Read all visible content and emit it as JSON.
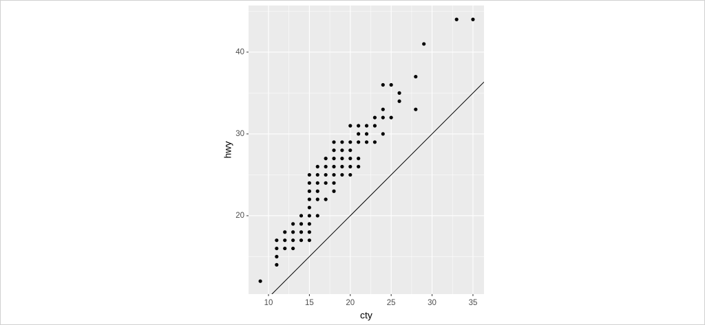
{
  "chart_data": {
    "type": "scatter",
    "x_label": "cty",
    "y_label": "hwy",
    "x": [
      9,
      11,
      11,
      11,
      11,
      12,
      12,
      12,
      13,
      13,
      13,
      13,
      14,
      14,
      14,
      14,
      15,
      15,
      15,
      15,
      15,
      15,
      15,
      15,
      15,
      16,
      16,
      16,
      16,
      16,
      16,
      17,
      17,
      17,
      17,
      17,
      18,
      18,
      18,
      18,
      18,
      18,
      18,
      19,
      19,
      19,
      19,
      19,
      20,
      20,
      20,
      20,
      20,
      20,
      21,
      21,
      21,
      21,
      21,
      22,
      22,
      22,
      23,
      23,
      23,
      24,
      24,
      24,
      24,
      25,
      25,
      26,
      26,
      28,
      28,
      29,
      33,
      35
    ],
    "values": [
      12,
      14,
      15,
      16,
      17,
      16,
      17,
      18,
      16,
      17,
      18,
      19,
      17,
      18,
      19,
      20,
      17,
      18,
      19,
      20,
      21,
      22,
      23,
      24,
      25,
      20,
      22,
      23,
      24,
      25,
      26,
      22,
      24,
      25,
      26,
      27,
      23,
      24,
      25,
      26,
      27,
      28,
      29,
      25,
      26,
      27,
      28,
      29,
      25,
      26,
      27,
      28,
      29,
      31,
      26,
      27,
      29,
      30,
      31,
      29,
      30,
      31,
      29,
      31,
      32,
      30,
      32,
      33,
      36,
      32,
      36,
      34,
      35,
      33,
      37,
      41,
      44,
      44
    ],
    "color": "#000000",
    "xlim": [
      7.56,
      36.35
    ],
    "ylim": [
      10.42,
      45.7
    ],
    "xticks": [
      10,
      15,
      20,
      25,
      30,
      35
    ],
    "yticks": [
      20,
      30,
      40
    ],
    "abline": {
      "intercept": 0,
      "slope": 1
    },
    "grid": true
  }
}
